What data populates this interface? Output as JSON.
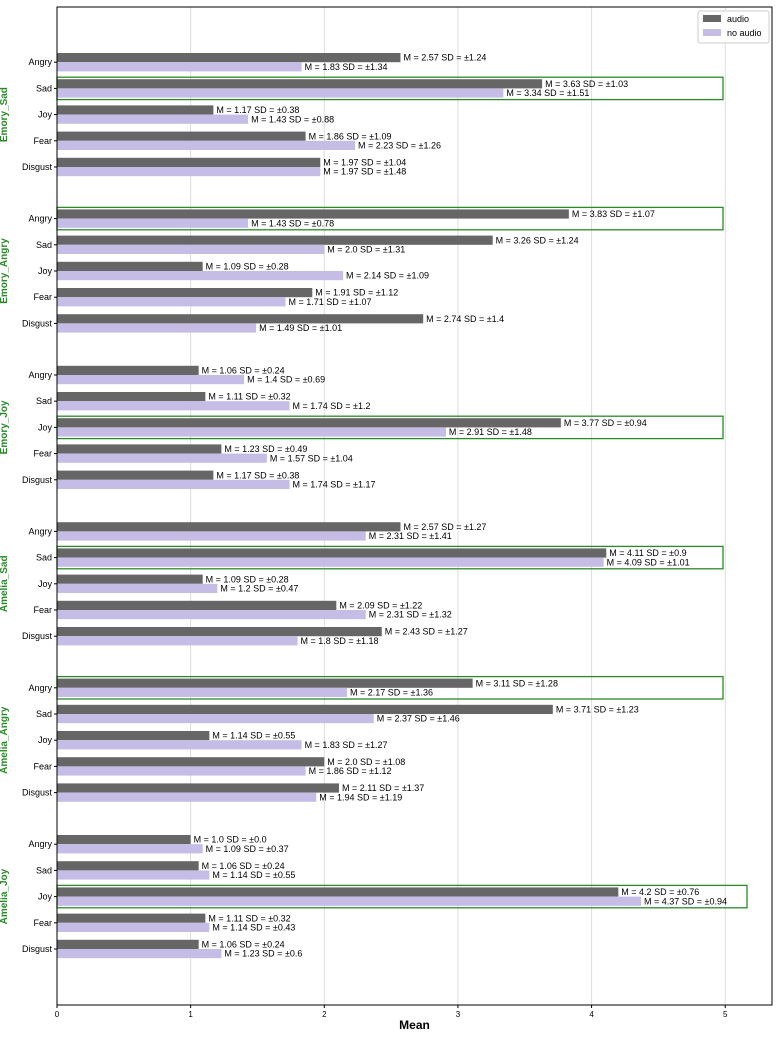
{
  "chart_data": {
    "type": "bar",
    "orientation": "horizontal",
    "xlabel": "Mean",
    "xlim": [
      0,
      5.35
    ],
    "xticks": [
      0,
      1,
      2,
      3,
      4,
      5
    ],
    "grid": "vertical",
    "legend_position": "top-right",
    "series": [
      {
        "name": "audio",
        "color": "#666666"
      },
      {
        "name": "no audio",
        "color": "#c5bde6"
      }
    ],
    "highlight_color": "#2a8a2a",
    "groups": [
      {
        "name": "Emory_Sad",
        "highlight": "Sad",
        "categories": [
          {
            "label": "Angry",
            "audio": {
              "mean": 2.57,
              "sd": 1.24
            },
            "no_audio": {
              "mean": 1.83,
              "sd": 1.34
            }
          },
          {
            "label": "Sad",
            "audio": {
              "mean": 3.63,
              "sd": 1.03
            },
            "no_audio": {
              "mean": 3.34,
              "sd": 1.51
            }
          },
          {
            "label": "Joy",
            "audio": {
              "mean": 1.17,
              "sd": 0.38
            },
            "no_audio": {
              "mean": 1.43,
              "sd": 0.88
            }
          },
          {
            "label": "Fear",
            "audio": {
              "mean": 1.86,
              "sd": 1.09
            },
            "no_audio": {
              "mean": 2.23,
              "sd": 1.26
            }
          },
          {
            "label": "Disgust",
            "audio": {
              "mean": 1.97,
              "sd": 1.04
            },
            "no_audio": {
              "mean": 1.97,
              "sd": 1.48
            }
          }
        ]
      },
      {
        "name": "Emory_Angry",
        "highlight": "Angry",
        "categories": [
          {
            "label": "Angry",
            "audio": {
              "mean": 3.83,
              "sd": 1.07
            },
            "no_audio": {
              "mean": 1.43,
              "sd": 0.78
            }
          },
          {
            "label": "Sad",
            "audio": {
              "mean": 3.26,
              "sd": 1.24
            },
            "no_audio": {
              "mean": 2.0,
              "sd": 1.31
            }
          },
          {
            "label": "Joy",
            "audio": {
              "mean": 1.09,
              "sd": 0.28
            },
            "no_audio": {
              "mean": 2.14,
              "sd": 1.09
            }
          },
          {
            "label": "Fear",
            "audio": {
              "mean": 1.91,
              "sd": 1.12
            },
            "no_audio": {
              "mean": 1.71,
              "sd": 1.07
            }
          },
          {
            "label": "Disgust",
            "audio": {
              "mean": 2.74,
              "sd": 1.4
            },
            "no_audio": {
              "mean": 1.49,
              "sd": 1.01
            }
          }
        ]
      },
      {
        "name": "Emory_Joy",
        "highlight": "Joy",
        "categories": [
          {
            "label": "Angry",
            "audio": {
              "mean": 1.06,
              "sd": 0.24
            },
            "no_audio": {
              "mean": 1.4,
              "sd": 0.69
            }
          },
          {
            "label": "Sad",
            "audio": {
              "mean": 1.11,
              "sd": 0.32
            },
            "no_audio": {
              "mean": 1.74,
              "sd": 1.2
            }
          },
          {
            "label": "Joy",
            "audio": {
              "mean": 3.77,
              "sd": 0.94
            },
            "no_audio": {
              "mean": 2.91,
              "sd": 1.48
            }
          },
          {
            "label": "Fear",
            "audio": {
              "mean": 1.23,
              "sd": 0.49
            },
            "no_audio": {
              "mean": 1.57,
              "sd": 1.04
            }
          },
          {
            "label": "Disgust",
            "audio": {
              "mean": 1.17,
              "sd": 0.38
            },
            "no_audio": {
              "mean": 1.74,
              "sd": 1.17
            }
          }
        ]
      },
      {
        "name": "Amelia_Sad",
        "highlight": "Sad",
        "categories": [
          {
            "label": "Angry",
            "audio": {
              "mean": 2.57,
              "sd": 1.27
            },
            "no_audio": {
              "mean": 2.31,
              "sd": 1.41
            }
          },
          {
            "label": "Sad",
            "audio": {
              "mean": 4.11,
              "sd": 0.9
            },
            "no_audio": {
              "mean": 4.09,
              "sd": 1.01
            }
          },
          {
            "label": "Joy",
            "audio": {
              "mean": 1.09,
              "sd": 0.28
            },
            "no_audio": {
              "mean": 1.2,
              "sd": 0.47
            }
          },
          {
            "label": "Fear",
            "audio": {
              "mean": 2.09,
              "sd": 1.22
            },
            "no_audio": {
              "mean": 2.31,
              "sd": 1.32
            }
          },
          {
            "label": "Disgust",
            "audio": {
              "mean": 2.43,
              "sd": 1.27
            },
            "no_audio": {
              "mean": 1.8,
              "sd": 1.18
            }
          }
        ]
      },
      {
        "name": "Amelia_Angry",
        "highlight": "Angry",
        "categories": [
          {
            "label": "Angry",
            "audio": {
              "mean": 3.11,
              "sd": 1.28
            },
            "no_audio": {
              "mean": 2.17,
              "sd": 1.36
            }
          },
          {
            "label": "Sad",
            "audio": {
              "mean": 3.71,
              "sd": 1.23
            },
            "no_audio": {
              "mean": 2.37,
              "sd": 1.46
            }
          },
          {
            "label": "Joy",
            "audio": {
              "mean": 1.14,
              "sd": 0.55
            },
            "no_audio": {
              "mean": 1.83,
              "sd": 1.27
            }
          },
          {
            "label": "Fear",
            "audio": {
              "mean": 2.0,
              "sd": 1.08
            },
            "no_audio": {
              "mean": 1.86,
              "sd": 1.12
            }
          },
          {
            "label": "Disgust",
            "audio": {
              "mean": 2.11,
              "sd": 1.37
            },
            "no_audio": {
              "mean": 1.94,
              "sd": 1.19
            }
          }
        ]
      },
      {
        "name": "Amelia_Joy",
        "highlight": "Joy",
        "categories": [
          {
            "label": "Angry",
            "audio": {
              "mean": 1.0,
              "sd": 0.0
            },
            "no_audio": {
              "mean": 1.09,
              "sd": 0.37
            }
          },
          {
            "label": "Sad",
            "audio": {
              "mean": 1.06,
              "sd": 0.24
            },
            "no_audio": {
              "mean": 1.14,
              "sd": 0.55
            }
          },
          {
            "label": "Joy",
            "audio": {
              "mean": 4.2,
              "sd": 0.76
            },
            "no_audio": {
              "mean": 4.37,
              "sd": 0.94
            }
          },
          {
            "label": "Fear",
            "audio": {
              "mean": 1.11,
              "sd": 0.32
            },
            "no_audio": {
              "mean": 1.14,
              "sd": 0.43
            }
          },
          {
            "label": "Disgust",
            "audio": {
              "mean": 1.06,
              "sd": 0.24
            },
            "no_audio": {
              "mean": 1.23,
              "sd": 0.6
            }
          }
        ]
      }
    ]
  }
}
